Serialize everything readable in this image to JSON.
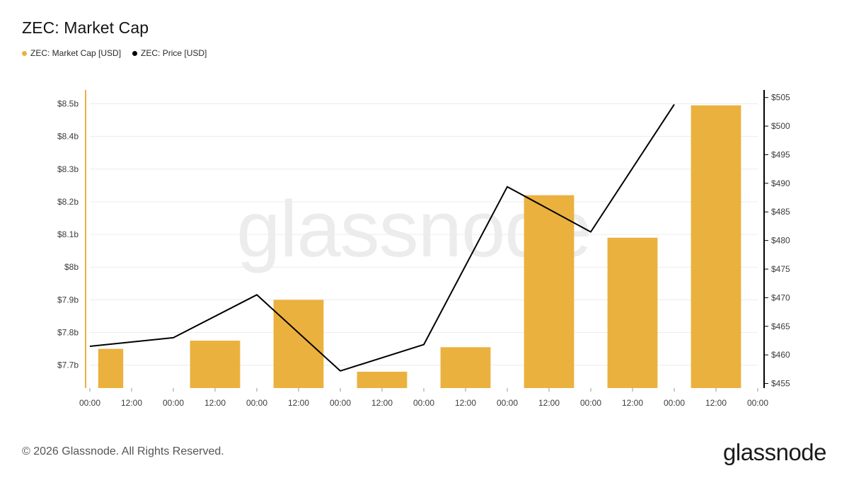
{
  "title": "ZEC: Market Cap",
  "legend": [
    {
      "label": "ZEC: Market Cap [USD]",
      "color": "#EBB13E"
    },
    {
      "label": "ZEC: Price [USD]",
      "color": "#000000"
    }
  ],
  "footer": "© 2026 Glassnode. All Rights Reserved.",
  "brand": "glassnode",
  "watermark": "glassnode",
  "chart_data": {
    "type": "bar",
    "title": "ZEC: Market Cap",
    "x_ticks": [
      "00:00",
      "12:00",
      "00:00",
      "12:00",
      "00:00",
      "12:00",
      "00:00",
      "12:00",
      "00:00",
      "12:00",
      "00:00",
      "12:00",
      "00:00",
      "12:00",
      "00:00",
      "12:00",
      "00:00"
    ],
    "series": [
      {
        "name": "ZEC: Market Cap [USD]",
        "type": "bar",
        "axis": "left",
        "color": "#EBB13E",
        "x": [
          0.25,
          1.5,
          2.5,
          3.5,
          4.5,
          5.5,
          6.5,
          7.5
        ],
        "values": [
          7.75,
          7.775,
          7.9,
          7.68,
          7.755,
          8.22,
          8.09,
          8.495
        ]
      },
      {
        "name": "ZEC: Price [USD]",
        "type": "line",
        "axis": "right",
        "color": "#000000",
        "x": [
          0,
          1,
          2,
          3,
          4,
          5,
          6,
          7
        ],
        "values": [
          461.5,
          463,
          470.5,
          457.2,
          461.8,
          489.4,
          481.5,
          503.8
        ]
      }
    ],
    "bar_width_days": [
      0.3,
      0.6,
      0.6,
      0.6,
      0.6,
      0.6,
      0.6,
      0.6
    ],
    "y_left": {
      "min": 7.63,
      "max": 8.54,
      "ticks": [
        7.7,
        7.8,
        7.9,
        8.0,
        8.1,
        8.2,
        8.3,
        8.4,
        8.5
      ],
      "tick_labels": [
        "$7.7b",
        "$7.8b",
        "$7.9b",
        "$8b",
        "$8.1b",
        "$8.2b",
        "$8.3b",
        "$8.4b",
        "$8.5b"
      ]
    },
    "y_right": {
      "min": 454.2,
      "max": 506.2,
      "ticks": [
        455,
        460,
        465,
        470,
        475,
        480,
        485,
        490,
        495,
        500,
        505
      ],
      "tick_labels": [
        "$455",
        "$460",
        "$465",
        "$470",
        "$475",
        "$480",
        "$485",
        "$490",
        "$495",
        "$500",
        "$505"
      ]
    },
    "x_range": [
      0,
      8
    ],
    "grid": true,
    "legend_position": "top-left"
  }
}
